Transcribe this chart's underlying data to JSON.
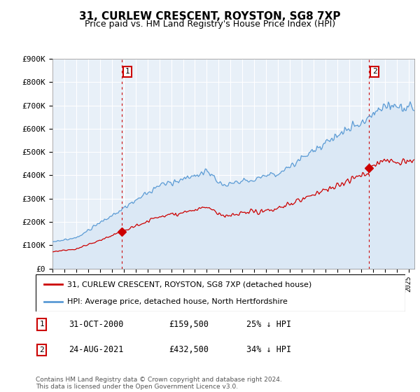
{
  "title": "31, CURLEW CRESCENT, ROYSTON, SG8 7XP",
  "subtitle": "Price paid vs. HM Land Registry's House Price Index (HPI)",
  "ylabel_ticks": [
    "£0",
    "£100K",
    "£200K",
    "£300K",
    "£400K",
    "£500K",
    "£600K",
    "£700K",
    "£800K",
    "£900K"
  ],
  "ytick_vals": [
    0,
    100000,
    200000,
    300000,
    400000,
    500000,
    600000,
    700000,
    800000,
    900000
  ],
  "ylim": [
    0,
    900000
  ],
  "xlim_start": 1995.0,
  "xlim_end": 2025.5,
  "hpi_color": "#5b9bd5",
  "hpi_fill_color": "#dbe8f5",
  "price_color": "#cc0000",
  "vline_color": "#cc0000",
  "marker1_year": 2000.83,
  "marker1_price": 159500,
  "marker1_label": "1",
  "marker2_year": 2021.64,
  "marker2_price": 432500,
  "marker2_label": "2",
  "legend_line1": "31, CURLEW CRESCENT, ROYSTON, SG8 7XP (detached house)",
  "legend_line2": "HPI: Average price, detached house, North Hertfordshire",
  "table_row1": [
    "1",
    "31-OCT-2000",
    "£159,500",
    "25% ↓ HPI"
  ],
  "table_row2": [
    "2",
    "24-AUG-2021",
    "£432,500",
    "34% ↓ HPI"
  ],
  "footnote": "Contains HM Land Registry data © Crown copyright and database right 2024.\nThis data is licensed under the Open Government Licence v3.0.",
  "background_color": "#ffffff",
  "plot_bg_color": "#e8f0f8",
  "grid_color": "#ffffff"
}
